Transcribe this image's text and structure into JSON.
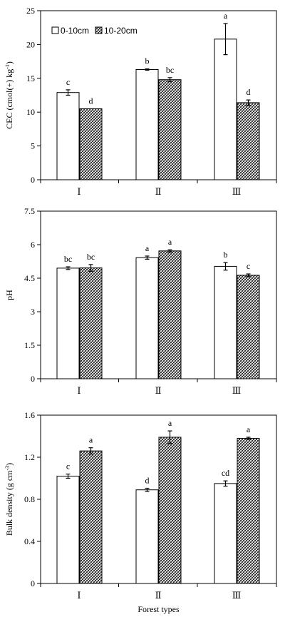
{
  "chart_data": [
    {
      "type": "bar",
      "categories": [
        "Ⅰ",
        "Ⅱ",
        "Ⅲ"
      ],
      "ylabel_main": "CEC (cmol(+) kg",
      "ylabel_sup": "-1",
      "ylabel_end": ")",
      "ylim": [
        0,
        25
      ],
      "yticks": [
        "0",
        "5",
        "10",
        "15",
        "20",
        "25"
      ],
      "legend_position": "top-left",
      "series": [
        {
          "name": "0-10cm",
          "values": [
            12.9,
            16.3,
            20.8
          ],
          "errors": [
            0.4,
            0.1,
            2.3
          ],
          "letters": [
            "c",
            "b",
            "a"
          ]
        },
        {
          "name": "10-20cm",
          "values": [
            10.5,
            14.8,
            11.4
          ],
          "errors": [
            0.0,
            0.3,
            0.4
          ],
          "letters": [
            "d",
            "bc",
            "d"
          ]
        }
      ]
    },
    {
      "type": "bar",
      "categories": [
        "Ⅰ",
        "Ⅱ",
        "Ⅲ"
      ],
      "ylabel_main": "pH",
      "ylim": [
        0,
        7.5
      ],
      "yticks": [
        "0",
        "1.5",
        "3",
        "4.5",
        "6",
        "7.5"
      ],
      "series": [
        {
          "name": "0-10cm",
          "values": [
            4.95,
            5.42,
            5.03
          ],
          "errors": [
            0.06,
            0.07,
            0.17
          ],
          "letters": [
            "bc",
            "a",
            "b"
          ]
        },
        {
          "name": "10-20cm",
          "values": [
            4.96,
            5.72,
            4.63
          ],
          "errors": [
            0.15,
            0.05,
            0.06
          ],
          "letters": [
            "bc",
            "a",
            "c"
          ]
        }
      ]
    },
    {
      "type": "bar",
      "categories": [
        "Ⅰ",
        "Ⅱ",
        "Ⅲ"
      ],
      "ylabel_main": "Bulk density (g cm",
      "ylabel_sup": "-3",
      "ylabel_end": ")",
      "xlabel": "Forest types",
      "ylim": [
        0,
        1.6
      ],
      "yticks": [
        "0",
        "0.4",
        "0.8",
        "1.2",
        "1.6"
      ],
      "series": [
        {
          "name": "0-10cm",
          "values": [
            1.02,
            0.89,
            0.95
          ],
          "errors": [
            0.02,
            0.015,
            0.025
          ],
          "letters": [
            "c",
            "d",
            "cd"
          ]
        },
        {
          "name": "10-20cm",
          "values": [
            1.26,
            1.39,
            1.38
          ],
          "errors": [
            0.03,
            0.06,
            0.01
          ],
          "letters": [
            "a",
            "a",
            "a"
          ]
        }
      ]
    }
  ]
}
